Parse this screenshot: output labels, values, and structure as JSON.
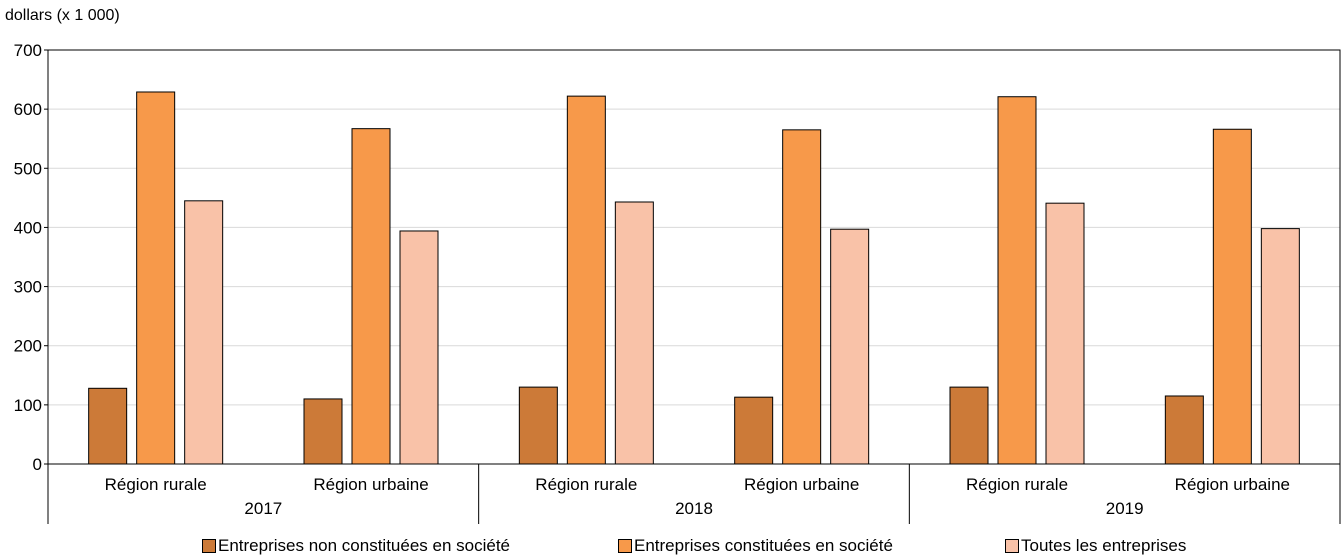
{
  "chart_data": {
    "type": "bar",
    "ylabel": "dollars (x 1 000)",
    "ylim": [
      0,
      700
    ],
    "yticks": [
      0,
      100,
      200,
      300,
      400,
      500,
      600,
      700
    ],
    "grid": true,
    "legend_position": "bottom",
    "groups": [
      {
        "year": "2017",
        "categories": [
          "Région rurale",
          "Région urbaine"
        ]
      },
      {
        "year": "2018",
        "categories": [
          "Région rurale",
          "Région urbaine"
        ]
      },
      {
        "year": "2019",
        "categories": [
          "Région rurale",
          "Région urbaine"
        ]
      }
    ],
    "series": [
      {
        "name": "Entreprises non constituées en société",
        "color": "#cc7a38",
        "values": [
          128,
          110,
          130,
          113,
          130,
          115
        ]
      },
      {
        "name": "Entreprises constituées en société",
        "color": "#f7994a",
        "values": [
          629,
          567,
          622,
          565,
          621,
          566
        ]
      },
      {
        "name": "Toutes les entreprises",
        "color": "#f9c2a8",
        "values": [
          445,
          394,
          443,
          397,
          441,
          398
        ]
      }
    ]
  }
}
